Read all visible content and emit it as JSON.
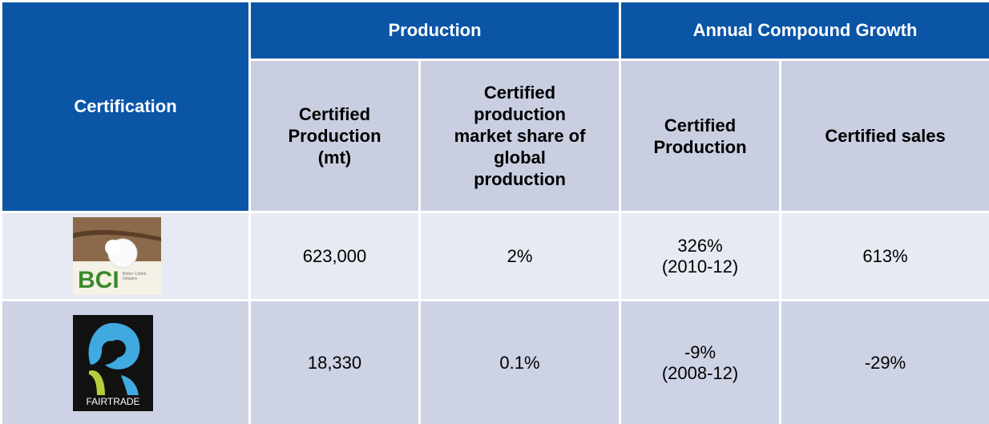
{
  "table": {
    "header": {
      "certification": "Certification",
      "groups": [
        "Production",
        "Annual Compound Growth"
      ],
      "columns": [
        "Certified Production (mt)",
        "Certified production market share of global production",
        "Certified Production",
        "Certified sales"
      ]
    },
    "rows": [
      {
        "logo": [
          "BCI",
          "Better Cotton Initiative"
        ],
        "cells": [
          "623,000",
          "2%",
          [
            "326%",
            "(2010-12)"
          ],
          "613%"
        ]
      },
      {
        "logo": [
          "FAIRTRADE"
        ],
        "cells": [
          "18,330",
          "0.1%",
          [
            "-9%",
            "(2008-12)"
          ],
          "-29%"
        ]
      }
    ]
  }
}
